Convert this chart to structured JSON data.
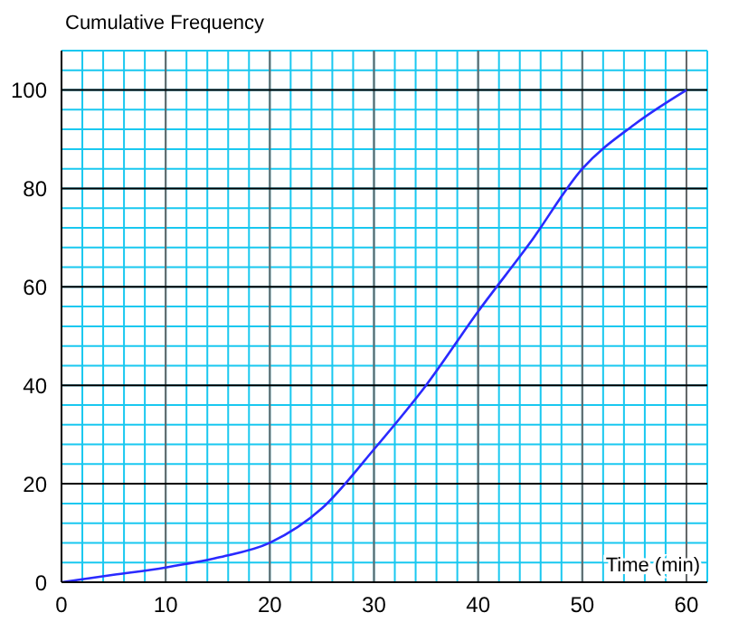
{
  "chart_data": {
    "type": "line",
    "xlabel": "Time (min)",
    "ylabel": "Cumulative Frequency",
    "x": [
      0,
      5,
      10,
      15,
      20,
      25,
      30,
      35,
      40,
      45,
      50,
      55,
      60
    ],
    "series": [
      {
        "color": "#2a2aff",
        "values": [
          0,
          1.5,
          3,
          5,
          8,
          15,
          27,
          40,
          55,
          69,
          84,
          93,
          100
        ]
      }
    ],
    "xlim": [
      0,
      62
    ],
    "ylim": [
      0,
      108
    ],
    "xticks": [
      0,
      10,
      20,
      30,
      40,
      50,
      60
    ],
    "yticks": [
      0,
      20,
      40,
      60,
      80,
      100
    ],
    "grid": true,
    "marker": "none",
    "line_style": "solid"
  }
}
